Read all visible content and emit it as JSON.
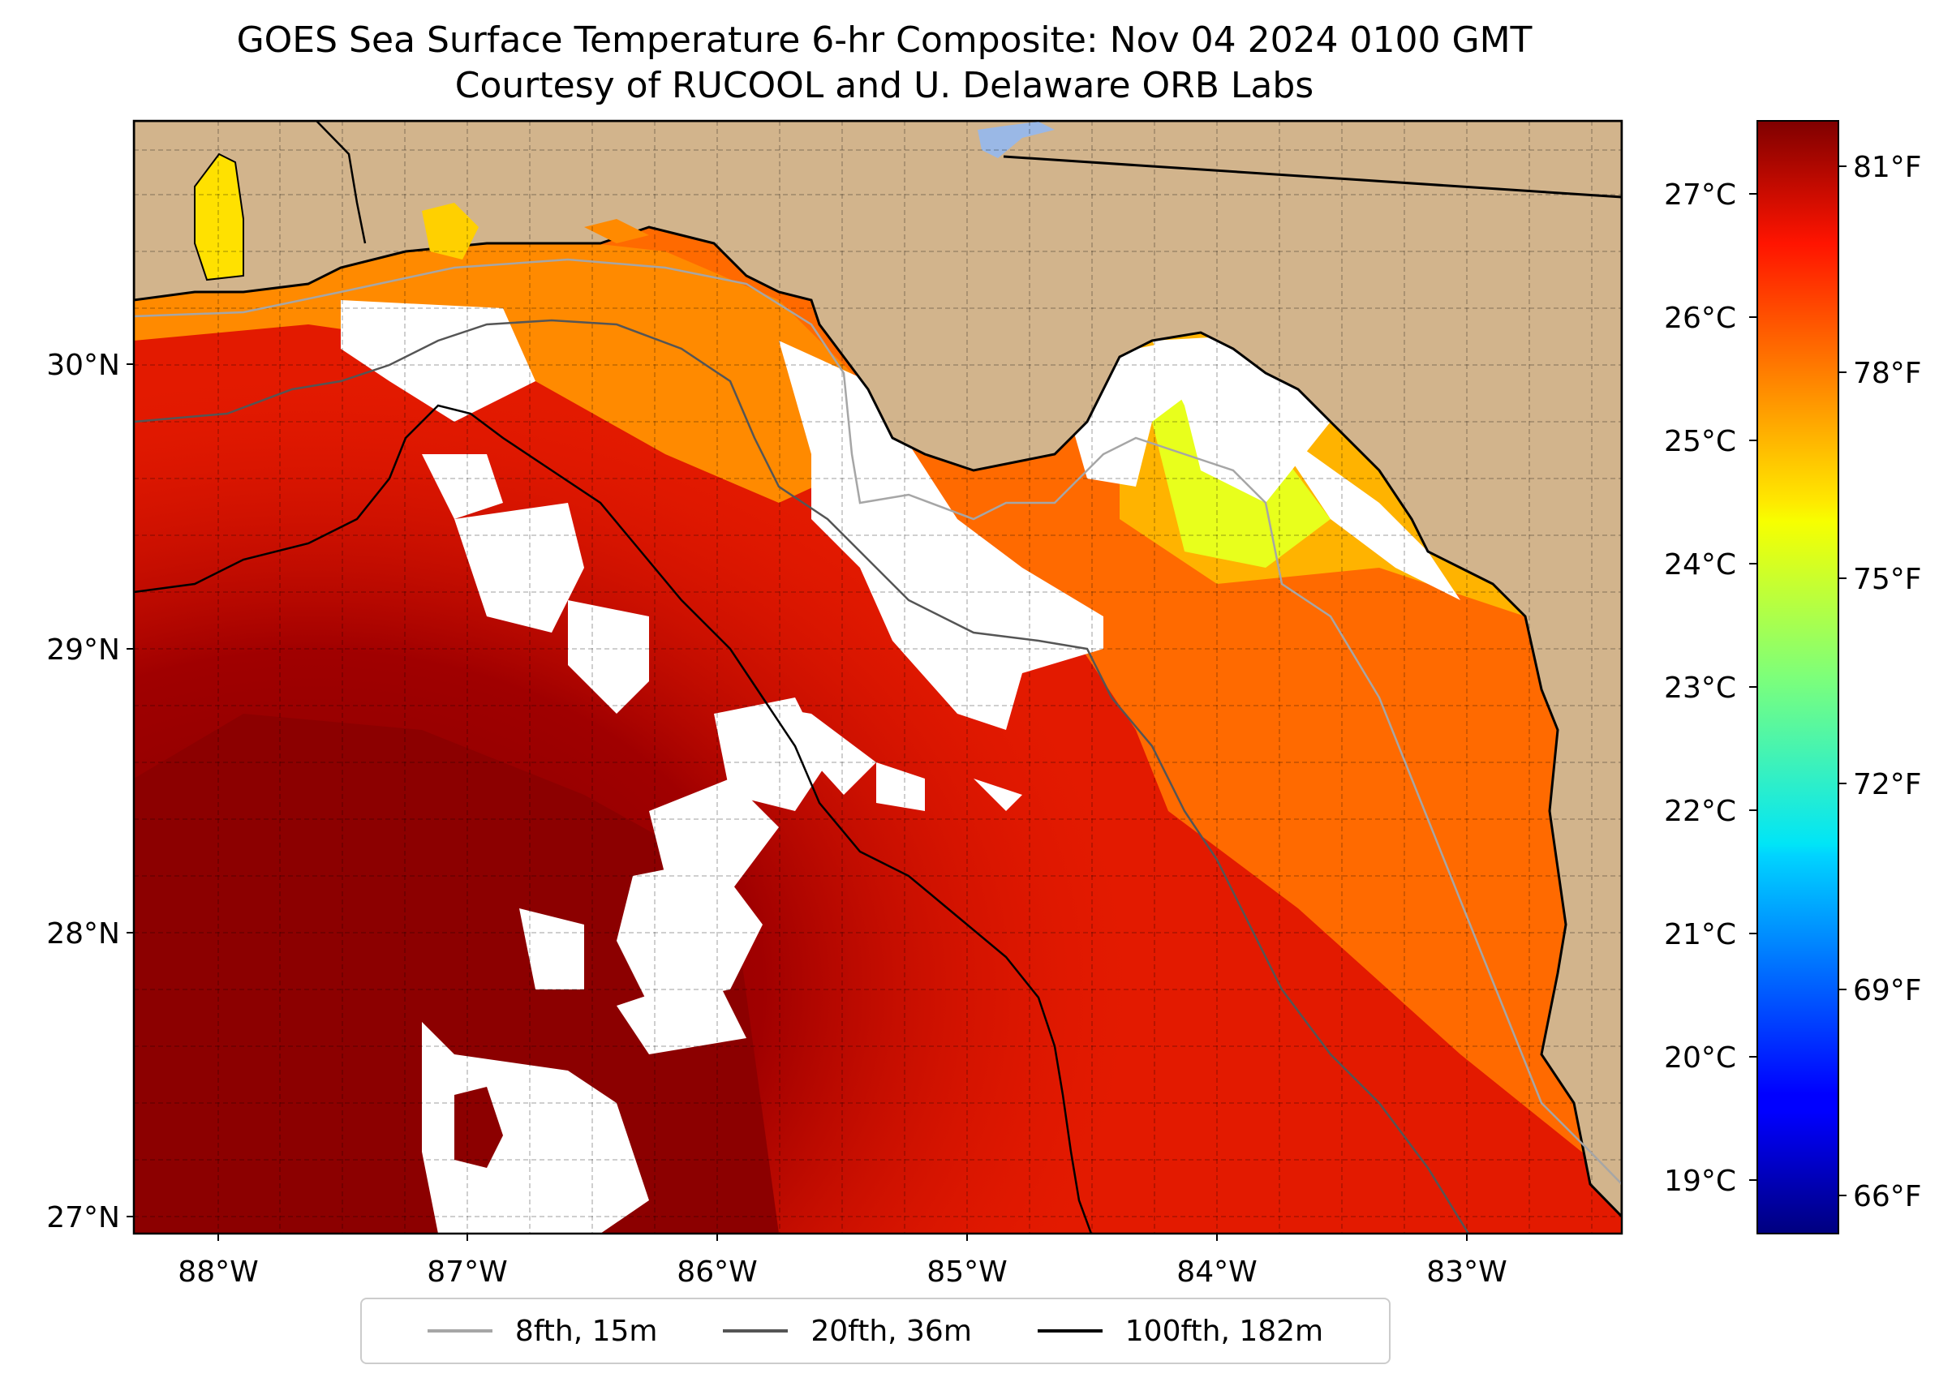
{
  "header": {
    "title": "GOES Sea Surface Temperature 6-hr Composite: Nov 04 2024 0100 GMT",
    "subtitle": "Courtesy of RUCOOL and U. Delaware ORB Labs"
  },
  "map": {
    "lon_labels": [
      "88°W",
      "87°W",
      "86°W",
      "85°W",
      "84°W",
      "83°W"
    ],
    "lat_labels": [
      "30°N",
      "29°N",
      "28°N",
      "27°N"
    ],
    "extent": {
      "lon_min": -88.33,
      "lon_max": -82.38,
      "lat_min": 26.93,
      "lat_max": 30.85
    },
    "land_color": "#d2b48c",
    "nodata_color": "#ffffff"
  },
  "colorbar": {
    "colormap": "jet",
    "celsius_labels": [
      "27°C",
      "26°C",
      "25°C",
      "24°C",
      "23°C",
      "22°C",
      "21°C",
      "20°C",
      "19°C"
    ],
    "fahrenheit_labels": [
      "81°F",
      "78°F",
      "75°F",
      "72°F",
      "69°F",
      "66°F"
    ],
    "range_f": [
      65.3,
      82.2
    ]
  },
  "legend": {
    "items": [
      {
        "label": "8fth, 15m",
        "color": "#a6a6a6"
      },
      {
        "label": "20fth, 36m",
        "color": "#555555"
      },
      {
        "label": "100fth, 182m",
        "color": "#000000"
      }
    ]
  }
}
